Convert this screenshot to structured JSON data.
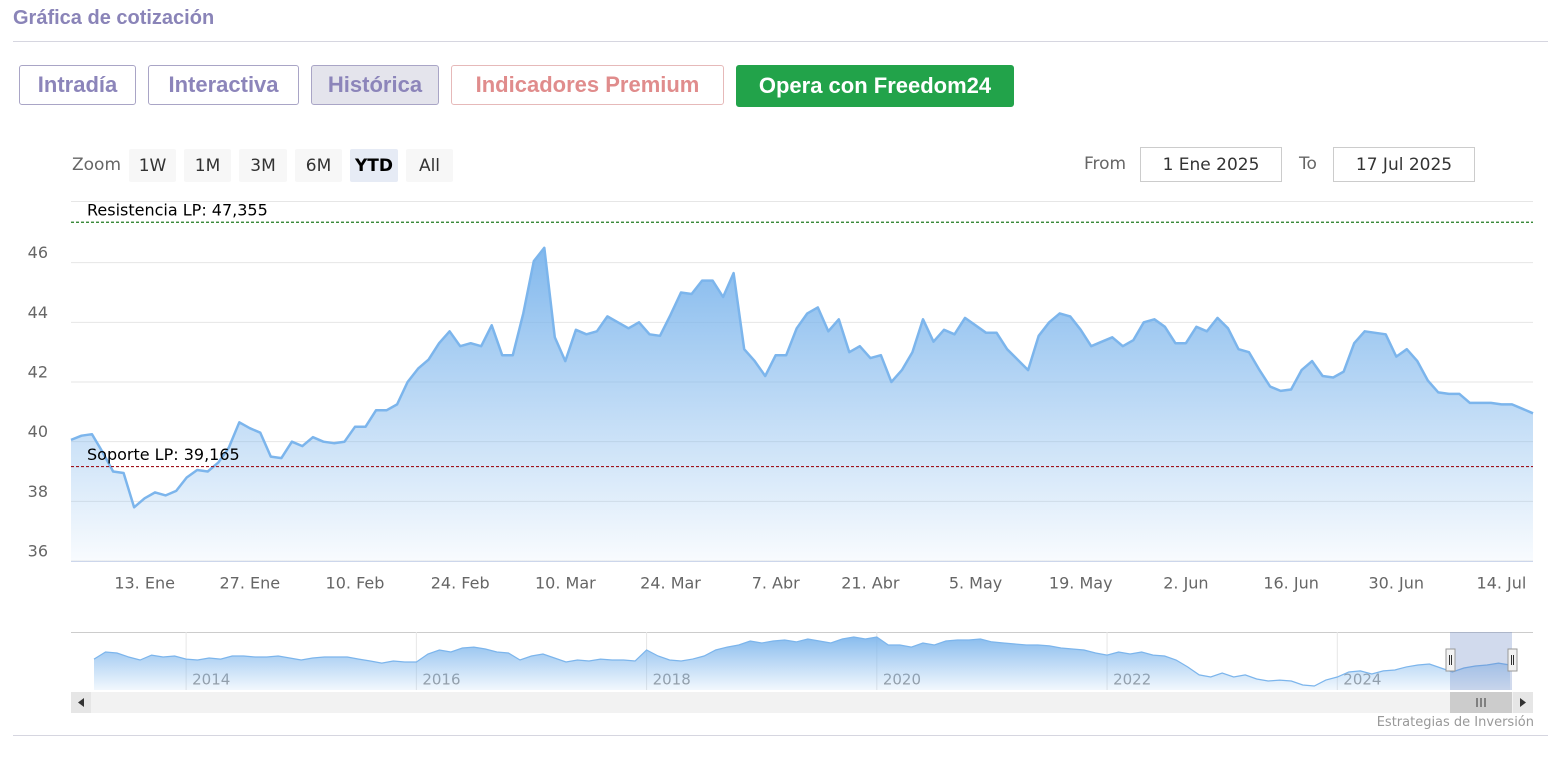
{
  "header": {
    "title": "Gráfica de cotización"
  },
  "tabs": [
    "Intradía",
    "Interactiva",
    "Histórica",
    "Indicadores Premium",
    "Opera con Freedom24"
  ],
  "zoom": {
    "label": "Zoom",
    "buttons": [
      "1W",
      "1M",
      "3M",
      "6M",
      "YTD",
      "All"
    ]
  },
  "range": {
    "from_label": "From",
    "from": "1 Ene 2025",
    "to_label": "To",
    "to": "17 Jul 2025"
  },
  "credits": "Estrategias de Inversión",
  "chart_data": [
    {
      "type": "area",
      "color": "#7cb5ec",
      "grid": true,
      "categories": [
        null,
        null,
        null,
        null,
        null,
        null,
        null,
        "13. Ene",
        null,
        null,
        null,
        null,
        null,
        null,
        null,
        null,
        null,
        "27. Ene",
        null,
        null,
        null,
        null,
        null,
        null,
        null,
        null,
        null,
        "10. Feb",
        null,
        null,
        null,
        null,
        null,
        null,
        null,
        null,
        null,
        "24. Feb",
        null,
        null,
        null,
        null,
        null,
        null,
        null,
        null,
        null,
        "10. Mar",
        null,
        null,
        null,
        null,
        null,
        null,
        null,
        null,
        null,
        "24. Mar",
        null,
        null,
        null,
        null,
        null,
        null,
        null,
        null,
        null,
        "7. Abr",
        null,
        null,
        null,
        null,
        null,
        null,
        null,
        null,
        "21. Abr",
        null,
        null,
        null,
        null,
        null,
        null,
        null,
        null,
        null,
        "5. May",
        null,
        null,
        null,
        null,
        null,
        null,
        null,
        null,
        null,
        "19. May",
        null,
        null,
        null,
        null,
        null,
        null,
        null,
        null,
        null,
        "2. Jun",
        null,
        null,
        null,
        null,
        null,
        null,
        null,
        null,
        null,
        "16. Jun",
        null,
        null,
        null,
        null,
        null,
        null,
        null,
        null,
        null,
        "30. Jun",
        null,
        null,
        null,
        null,
        null,
        null,
        null,
        null,
        null,
        "14. Jul",
        null,
        null,
        null
      ],
      "values": [
        40.06,
        40.2,
        40.25,
        39.65,
        39.0,
        38.95,
        37.8,
        38.1,
        38.3,
        38.2,
        38.35,
        38.8,
        39.05,
        39.0,
        39.3,
        39.8,
        40.65,
        40.45,
        40.3,
        39.5,
        39.45,
        40.0,
        39.85,
        40.15,
        40.0,
        39.95,
        40.0,
        40.5,
        40.5,
        41.05,
        41.05,
        41.25,
        42.0,
        42.45,
        42.75,
        43.3,
        43.7,
        43.2,
        43.3,
        43.2,
        43.9,
        42.9,
        42.9,
        44.3,
        46.05,
        46.5,
        43.5,
        42.7,
        43.75,
        43.6,
        43.7,
        44.2,
        44.0,
        43.8,
        44.0,
        43.6,
        43.55,
        44.25,
        45.0,
        44.95,
        45.4,
        45.4,
        44.85,
        45.65,
        43.1,
        42.7,
        42.2,
        42.9,
        42.9,
        43.8,
        44.3,
        44.5,
        43.7,
        44.1,
        43.0,
        43.2,
        42.8,
        42.9,
        42.0,
        42.4,
        43.0,
        44.1,
        43.35,
        43.75,
        43.6,
        44.15,
        43.9,
        43.65,
        43.65,
        43.1,
        42.75,
        42.4,
        43.55,
        44.0,
        44.3,
        44.2,
        43.75,
        43.2,
        43.35,
        43.5,
        43.2,
        43.4,
        44.0,
        44.1,
        43.85,
        43.3,
        43.3,
        43.85,
        43.7,
        44.15,
        43.8,
        43.1,
        43.0,
        42.4,
        41.85,
        41.7,
        41.75,
        42.4,
        42.7,
        42.2,
        42.15,
        42.35,
        43.3,
        43.7,
        43.65,
        43.6,
        42.85,
        43.1,
        42.7,
        42.05,
        41.65,
        41.6,
        41.6,
        41.3,
        41.3,
        41.3,
        41.25,
        41.25,
        41.1,
        40.95
      ],
      "ylim": [
        36,
        48
      ],
      "yticks": [
        36,
        38,
        40,
        42,
        44,
        46
      ],
      "plot_lines": [
        {
          "label": "Resistencia LP: 47,355",
          "value": 47.355,
          "color": "#1e7a1e"
        },
        {
          "label": "Soporte LP: 39,165",
          "value": 39.165,
          "color": "#a0141e"
        }
      ]
    },
    {
      "type": "area",
      "color": "#7cb5ec",
      "x": [
        2013.2,
        2013.3,
        2013.4,
        2013.5,
        2013.6,
        2013.7,
        2013.8,
        2013.9,
        2014.0,
        2014.1,
        2014.2,
        2014.3,
        2014.4,
        2014.5,
        2014.6,
        2014.7,
        2014.8,
        2014.9,
        2015.0,
        2015.1,
        2015.2,
        2015.3,
        2015.4,
        2015.5,
        2015.6,
        2015.7,
        2015.8,
        2015.9,
        2016.0,
        2016.1,
        2016.2,
        2016.3,
        2016.4,
        2016.5,
        2016.6,
        2016.7,
        2016.8,
        2016.9,
        2017.0,
        2017.1,
        2017.2,
        2017.3,
        2017.4,
        2017.5,
        2017.6,
        2017.7,
        2017.8,
        2017.9,
        2018.0,
        2018.1,
        2018.2,
        2018.3,
        2018.4,
        2018.5,
        2018.6,
        2018.7,
        2018.8,
        2018.9,
        2019.0,
        2019.1,
        2019.2,
        2019.3,
        2019.4,
        2019.5,
        2019.6,
        2019.7,
        2019.8,
        2019.9,
        2020.0,
        2020.1,
        2020.2,
        2020.3,
        2020.4,
        2020.5,
        2020.6,
        2020.7,
        2020.8,
        2020.9,
        2021.0,
        2021.1,
        2021.2,
        2021.3,
        2021.4,
        2021.5,
        2021.6,
        2021.7,
        2021.8,
        2021.9,
        2022.0,
        2022.1,
        2022.2,
        2022.3,
        2022.4,
        2022.5,
        2022.6,
        2022.7,
        2022.8,
        2022.9,
        2023.0,
        2023.1,
        2023.2,
        2023.3,
        2023.4,
        2023.5,
        2023.6,
        2023.7,
        2023.8,
        2023.9,
        2024.0,
        2024.1,
        2024.2,
        2024.3,
        2024.4,
        2024.5,
        2024.6,
        2024.7,
        2024.8,
        2024.9,
        2025.0,
        2025.1,
        2025.2,
        2025.3,
        2025.4,
        2025.5
      ],
      "values": [
        46.4,
        51.5,
        50.8,
        47.9,
        45.7,
        49.3,
        47.9,
        48.6,
        46.4,
        45.7,
        47.2,
        46.4,
        48.6,
        48.6,
        47.9,
        47.9,
        48.6,
        47.2,
        45.7,
        47.2,
        47.9,
        47.9,
        47.9,
        46.4,
        45.0,
        43.5,
        45.0,
        44.3,
        44.3,
        50.1,
        53.0,
        51.5,
        54.4,
        55.1,
        53.7,
        51.5,
        50.8,
        45.7,
        48.6,
        50.1,
        47.2,
        44.3,
        45.7,
        45.0,
        46.4,
        45.7,
        45.7,
        45.0,
        53.0,
        48.6,
        45.7,
        45.0,
        46.4,
        48.6,
        53.0,
        55.1,
        56.6,
        59.5,
        58.0,
        59.5,
        60.2,
        58.8,
        60.9,
        59.5,
        58.0,
        60.9,
        62.4,
        60.9,
        62.4,
        56.6,
        56.6,
        55.1,
        58.0,
        56.6,
        59.5,
        60.2,
        60.2,
        60.9,
        58.8,
        58.0,
        57.3,
        56.6,
        56.6,
        55.9,
        54.4,
        53.7,
        53.0,
        50.8,
        49.3,
        51.5,
        50.1,
        51.5,
        49.3,
        48.6,
        45.7,
        40.7,
        34.9,
        33.4,
        36.3,
        33.4,
        34.9,
        32.0,
        30.5,
        31.2,
        30.5,
        27.6,
        26.9,
        31.2,
        33.4,
        37.0,
        37.8,
        35.6,
        37.8,
        38.5,
        40.7,
        42.1,
        42.8,
        39.9,
        37.0,
        39.9,
        41.4,
        42.1,
        43.5,
        42.1
      ],
      "xlim": [
        2013,
        2025.7
      ],
      "xticks": [
        2014,
        2016,
        2018,
        2020,
        2022,
        2024
      ],
      "ylim": [
        24,
        66
      ]
    }
  ]
}
